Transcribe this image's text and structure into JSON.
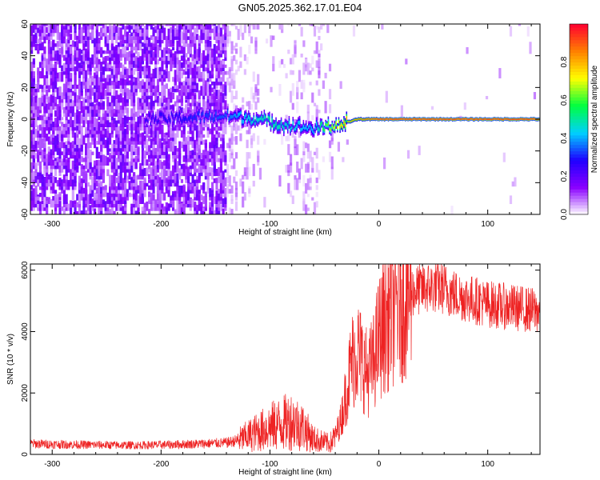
{
  "title": "GN05.2025.362.17.01.E04",
  "colors": {
    "snr_line": "#ee2222",
    "spectrogram_low": "#7a1ee0",
    "colorbar_stops": [
      "#ffffff",
      "#8a00ff",
      "#1e00ff",
      "#00d0ff",
      "#00ff40",
      "#ffff00",
      "#ff8000",
      "#ff0030"
    ]
  },
  "chart_data": [
    {
      "type": "heatmap",
      "title": "GN05.2025.362.17.01.E04",
      "xlabel": "Height of straight line (km)",
      "ylabel": "Frequency (Hz)",
      "xlim": [
        -320,
        148
      ],
      "ylim": [
        -60,
        60
      ],
      "x_ticks": [
        -300,
        -200,
        -100,
        0,
        100
      ],
      "y_ticks": [
        -60,
        -40,
        -20,
        0,
        20,
        40,
        60
      ],
      "colorbar": {
        "label": "Normalized spectral amplitude",
        "range": [
          0.0,
          1.0
        ],
        "ticks": [
          0.0,
          0.2,
          0.4,
          0.6,
          0.8
        ]
      },
      "ridge": {
        "description_points_x": [
          -210,
          -140,
          -120,
          -100,
          -80,
          -60,
          -50,
          -35,
          -20,
          0,
          50,
          100,
          148
        ],
        "frequency_hz": [
          0,
          2,
          1,
          -2,
          -4,
          -6,
          -5,
          -3,
          0,
          0,
          0,
          0,
          0
        ],
        "peak_amplitude": [
          0.25,
          0.35,
          0.45,
          0.5,
          0.45,
          0.4,
          0.6,
          0.75,
          0.85,
          0.95,
          0.95,
          0.95,
          0.95
        ]
      }
    },
    {
      "type": "line",
      "xlabel": "Height of straight line (km)",
      "ylabel": "SNR (10 * v/v)",
      "xlim": [
        -320,
        148
      ],
      "ylim": [
        0,
        6200
      ],
      "x_ticks": [
        -300,
        -200,
        -100,
        0,
        100
      ],
      "y_ticks": [
        0,
        2000,
        4000,
        6000
      ],
      "series": [
        {
          "x": [
            -320,
            -300,
            -280,
            -260,
            -240,
            -220,
            -200,
            -180,
            -160,
            -140,
            -130,
            -120,
            -110,
            -100,
            -90,
            -80,
            -70,
            -60,
            -50,
            -45,
            -40,
            -35,
            -30,
            -25,
            -20,
            -15,
            -10,
            -5,
            0,
            10,
            20,
            30,
            40,
            50,
            60,
            70,
            80,
            90,
            100,
            110,
            120,
            130,
            140,
            148
          ],
          "values": [
            350,
            330,
            320,
            310,
            300,
            300,
            310,
            330,
            350,
            380,
            450,
            600,
            750,
            900,
            1000,
            1100,
            900,
            500,
            400,
            350,
            600,
            1100,
            2000,
            3000,
            3400,
            3000,
            2600,
            3000,
            3800,
            4600,
            5100,
            5300,
            5400,
            5450,
            5400,
            5200,
            5100,
            5000,
            4900,
            4850,
            4800,
            4750,
            4700,
            4650
          ]
        }
      ]
    }
  ]
}
